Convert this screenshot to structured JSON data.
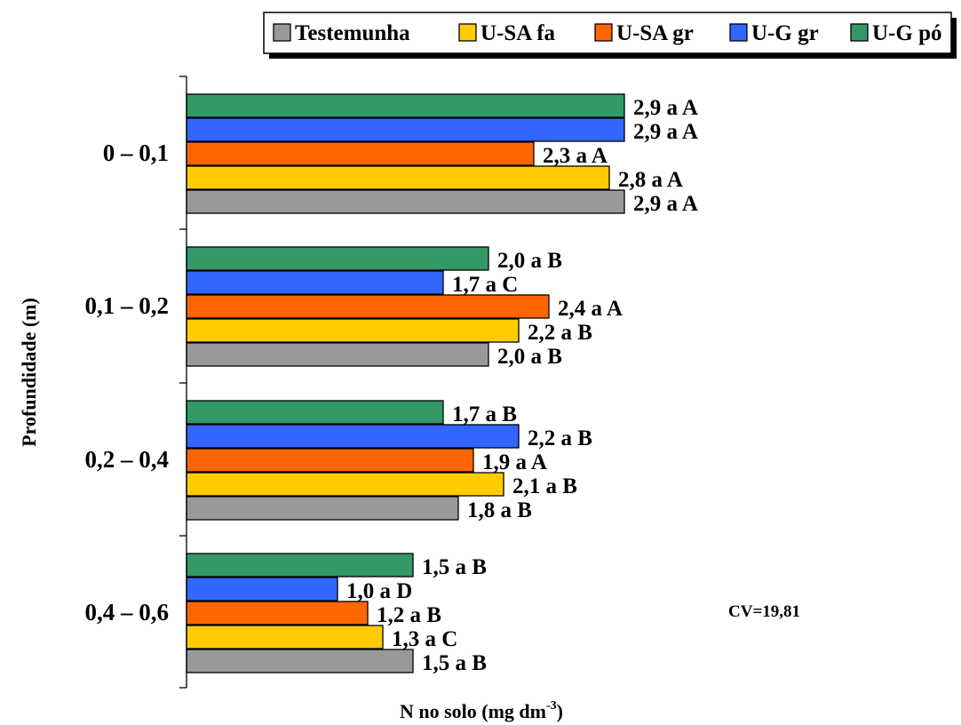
{
  "chart_data": {
    "type": "bar",
    "orientation": "horizontal",
    "ylabel": "Profundidade (m)",
    "xlabel_main": "N no solo (mg dm",
    "xlabel_sup": "-3",
    "xlabel_end": ")",
    "xlim": [
      0,
      3.0
    ],
    "categories": [
      "0 – 0,1",
      "0,1 – 0,2",
      "0,2 – 0,4",
      "0,4 – 0,6"
    ],
    "series": [
      {
        "name": "Testemunha",
        "color": "#999999",
        "values": [
          2.9,
          2.0,
          1.8,
          1.5
        ],
        "labels": [
          "2,9 a A",
          "2,0 a B",
          "1,8 a B",
          "1,5 a B"
        ]
      },
      {
        "name": "U-SA fa",
        "color": "#FFCC00",
        "values": [
          2.8,
          2.2,
          2.1,
          1.3
        ],
        "labels": [
          "2,8 a A",
          "2,2 a B",
          "2,1 a B",
          "1,3 a C"
        ]
      },
      {
        "name": "U-SA gr",
        "color": "#FF6600",
        "values": [
          2.3,
          2.4,
          1.9,
          1.2
        ],
        "labels": [
          "2,3 a A",
          "2,4 a A",
          "1,9 a A",
          "1,2 a B"
        ]
      },
      {
        "name": "U-G gr",
        "color": "#3366FF",
        "values": [
          2.9,
          1.7,
          2.2,
          1.0
        ],
        "labels": [
          "2,9 a A",
          "1,7 a C",
          "2,2 a B",
          "1,0 a D"
        ]
      },
      {
        "name": "U-G pó",
        "color": "#339966",
        "values": [
          2.9,
          2.0,
          1.7,
          1.5
        ],
        "labels": [
          "2,9 a A",
          "2,0 a B",
          "1,7 a B",
          "1,5 a B"
        ]
      }
    ],
    "legend_position": "top",
    "annotation": "CV=19,81",
    "grid": false
  }
}
